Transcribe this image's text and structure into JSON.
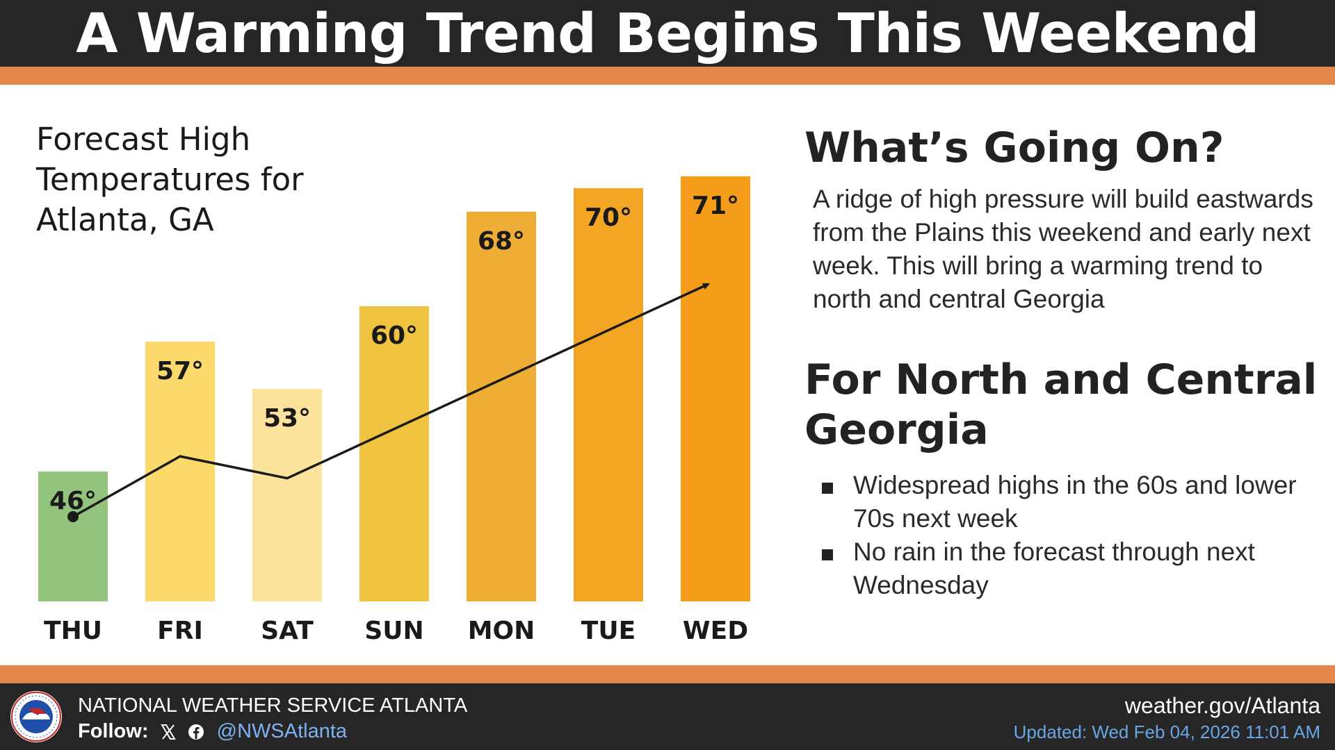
{
  "header": {
    "title": "A Warming Trend Begins This Weekend"
  },
  "colors": {
    "header_bg": "#262626",
    "accent_stripe": "#e3884a",
    "thu": "#92c47e",
    "fri": "#fbd96b",
    "sat": "#fce39b",
    "sun": "#efc33f",
    "mon": "#eeae35",
    "tue": "#f3a623",
    "wed": "#f49d1a",
    "link": "#7fb2f0"
  },
  "chart_data": {
    "type": "bar",
    "title": "Forecast High Temperatures for Atlanta, GA",
    "categories": [
      "THU",
      "FRI",
      "SAT",
      "SUN",
      "MON",
      "TUE",
      "WED"
    ],
    "values": [
      46,
      57,
      53,
      60,
      68,
      70,
      71
    ],
    "value_labels": [
      "46°",
      "57°",
      "53°",
      "60°",
      "68°",
      "70°",
      "71°"
    ],
    "unit": "°F",
    "trend_line": true,
    "grid": false,
    "legend": "none"
  },
  "side": {
    "heading1": "What’s Going On?",
    "paragraph": "A ridge of high pressure will build eastwards from the Plains this weekend and early next week. This will bring a warming trend to north and central Georgia",
    "heading2": "For North and Central Georgia",
    "bullets": [
      "Widespread highs in the 60s and lower 70s next week",
      "No rain in the forecast through next Wednesday"
    ]
  },
  "footer": {
    "logo_icon": "nws-logo-icon",
    "org": "NATIONAL WEATHER SERVICE ATLANTA",
    "follow_label": "Follow:",
    "social_icons": [
      "x-icon",
      "facebook-icon"
    ],
    "handle": "@NWSAtlanta",
    "website": "weather.gov/Atlanta",
    "updated": "Updated: Wed Feb 04, 2026 11:01 AM"
  }
}
